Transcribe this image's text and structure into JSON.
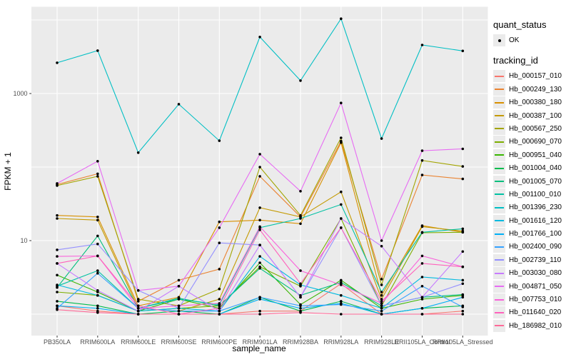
{
  "chart_data": {
    "type": "line",
    "title": "",
    "xlabel": "sample_name",
    "ylabel": "FPKM + 1",
    "yscale": "log10",
    "ylim": [
      1,
      12000
    ],
    "grid": true,
    "legend_position": "right",
    "panel_bg": "#ebebeb",
    "grid_color": "#ffffff",
    "point_color": "#000000",
    "tick_label_color": "#4d4d4d",
    "y_gridline_values": [
      1,
      10,
      100,
      1000,
      10000
    ],
    "y_ticks": [
      {
        "value": 10,
        "label": "10"
      },
      {
        "value": 1000,
        "label": "1000"
      }
    ],
    "categories": [
      "PB350LA",
      "RRIM600LA",
      "RRIM600LE",
      "RRIM600SE",
      "RRIM600PE",
      "RRIM901LA",
      "RRIM928BA",
      "RRIM928LA",
      "RRIM928LE",
      "RRII105LA_Control",
      "RRII105LA_Stressed"
    ],
    "series": [
      {
        "name": "Hb_000157_010",
        "color": "#F8766D",
        "values": [
          1.3,
          1.1,
          1.0,
          1.0,
          1.0,
          1.1,
          1.1,
          2.6,
          1.0,
          1.0,
          1.1
        ]
      },
      {
        "name": "Hb_000249_130",
        "color": "#EA8331",
        "values": [
          58,
          81,
          1.5,
          2.9,
          4.1,
          75,
          21,
          225,
          3.0,
          78,
          69
        ]
      },
      {
        "name": "Hb_000380_180",
        "color": "#D89000",
        "values": [
          22,
          21,
          1.3,
          1.7,
          18,
          19,
          17,
          215,
          1.8,
          16,
          13
        ]
      },
      {
        "name": "Hb_000387_100",
        "color": "#C49A00",
        "values": [
          20,
          19,
          1.2,
          1.1,
          1.6,
          28,
          21,
          46,
          1.6,
          15.5,
          13.5
        ]
      },
      {
        "name": "Hb_000567_250",
        "color": "#A3A500",
        "values": [
          56,
          75,
          1.6,
          1.3,
          2.2,
          100,
          22,
          250,
          2.5,
          123,
          102
        ]
      },
      {
        "name": "Hb_000690_070",
        "color": "#7CAE00",
        "values": [
          2.0,
          1.8,
          1.1,
          1.2,
          1.3,
          4.4,
          2.4,
          20,
          1.3,
          12.8,
          13
        ]
      },
      {
        "name": "Hb_000951_040",
        "color": "#39B600",
        "values": [
          3.4,
          2.0,
          1.1,
          1.6,
          1.2,
          5.0,
          1.35,
          2.9,
          1.2,
          1.6,
          1.8
        ]
      },
      {
        "name": "Hb_001004_040",
        "color": "#00BB4E",
        "values": [
          1.5,
          1.3,
          1.0,
          1.1,
          1.0,
          1.7,
          1.1,
          1.5,
          1.0,
          1.2,
          1.3
        ]
      },
      {
        "name": "Hb_001005_070",
        "color": "#00BF7D",
        "values": [
          2.3,
          11.6,
          1.2,
          1.65,
          1.3,
          4.2,
          1.8,
          2.7,
          1.3,
          1.7,
          1.85
        ]
      },
      {
        "name": "Hb_001100_010",
        "color": "#00C1A3",
        "values": [
          2.4,
          3.9,
          1.2,
          1.6,
          1.35,
          15,
          20,
          31,
          2.0,
          13,
          14.5
        ]
      },
      {
        "name": "Hb_001396_230",
        "color": "#00BFC4",
        "values": [
          2620,
          3830,
          157,
          717,
          228,
          5870,
          1500,
          10400,
          244,
          4570,
          3800
        ]
      },
      {
        "name": "Hb_001616_120",
        "color": "#00BAE0",
        "values": [
          2.5,
          1.8,
          1.1,
          1.2,
          1.1,
          6.1,
          2.5,
          1.8,
          1.2,
          3.2,
          2.9
        ]
      },
      {
        "name": "Hb_001766_100",
        "color": "#00B0F6",
        "values": [
          1.3,
          1.2,
          1.0,
          1.0,
          1.0,
          1.6,
          1.2,
          1.4,
          1.0,
          1.2,
          1.7
        ]
      },
      {
        "name": "Hb_002400_090",
        "color": "#35A2FF",
        "values": [
          1.2,
          3.6,
          1.2,
          1.1,
          1.1,
          1.7,
          1.3,
          1.35,
          1.1,
          2.4,
          1.25
        ]
      },
      {
        "name": "Hb_002739_110",
        "color": "#9590FF",
        "values": [
          7.5,
          9.0,
          2.1,
          1.2,
          9.3,
          8.7,
          1.7,
          15,
          1.3,
          1.7,
          2.6
        ]
      },
      {
        "name": "Hb_003030_080",
        "color": "#C77CFF",
        "values": [
          4.9,
          2.1,
          1.1,
          2.4,
          1.1,
          8.7,
          1.7,
          20,
          8.4,
          1.7,
          7.1
        ]
      },
      {
        "name": "Hb_004871_050",
        "color": "#E76BF3",
        "values": [
          60,
          120,
          2.1,
          2.4,
          15,
          150,
          47,
          745,
          10,
          167,
          177
        ]
      },
      {
        "name": "Hb_007753_010",
        "color": "#FA62DB",
        "values": [
          6.1,
          6.2,
          1.2,
          1.3,
          1.4,
          15.5,
          3.9,
          2.5,
          1.4,
          6.2,
          4.4
        ]
      },
      {
        "name": "Hb_011640_020",
        "color": "#FF62BC",
        "values": [
          4.9,
          6.2,
          1.3,
          1.0,
          1.2,
          14,
          2.6,
          15,
          1.5,
          4.9,
          4.4
        ]
      },
      {
        "name": "Hb_186982_010",
        "color": "#FF6A98",
        "values": [
          1.15,
          1.05,
          1.0,
          1.0,
          1.0,
          1.0,
          1.05,
          1.0,
          1.0,
          1.0,
          1.0
        ]
      }
    ],
    "legend": {
      "quant_status": {
        "title": "quant_status",
        "items": [
          {
            "label": "OK",
            "glyph": "point"
          }
        ]
      },
      "tracking_id": {
        "title": "tracking_id"
      }
    }
  }
}
